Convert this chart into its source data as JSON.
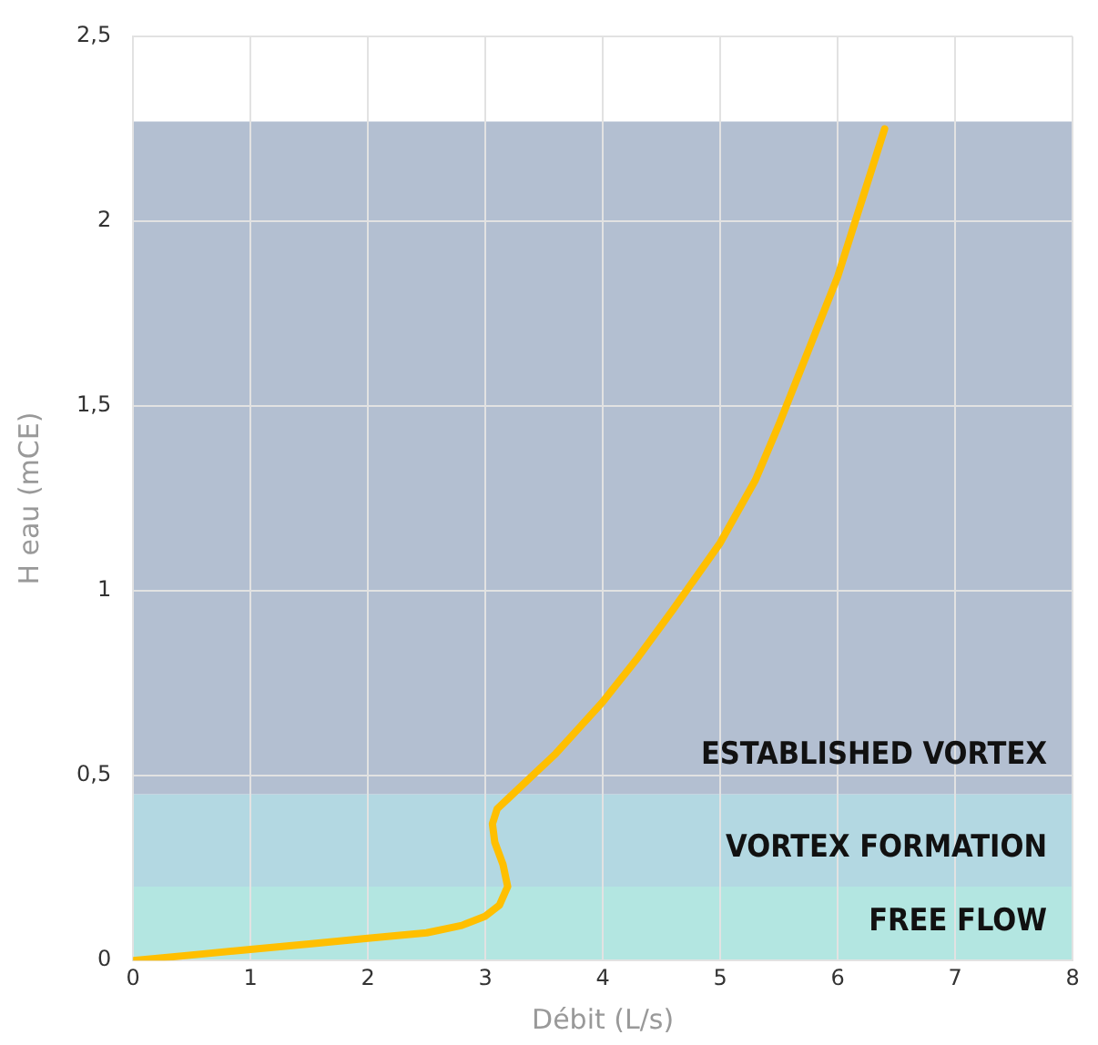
{
  "chart_data": {
    "type": "line",
    "xlabel": "Débit (L/s)",
    "ylabel": "H eau (mCE)",
    "xlim": [
      0,
      8
    ],
    "xticks": [
      0,
      1,
      2,
      3,
      4,
      5,
      6,
      7,
      8
    ],
    "ylim": [
      0,
      2.5
    ],
    "yticks": [
      0,
      {
        "value": 0.5,
        "label": "0,5"
      },
      1,
      {
        "value": 1.5,
        "label": "1,5"
      },
      2,
      {
        "value": 2.5,
        "label": "2,5"
      }
    ],
    "grid": true,
    "legend": false,
    "marker": "none",
    "line_style": "solid",
    "series": [
      {
        "color": "#ffbf00",
        "x": [
          0,
          0.5,
          1,
          1.5,
          2,
          2.5,
          2.8,
          3.0,
          3.12,
          3.19,
          3.15,
          3.08,
          3.06,
          3.1,
          3.2,
          3.4,
          3.6,
          3.8,
          4,
          4.3,
          4.6,
          5,
          5.3,
          5.5,
          5.75,
          6,
          6.2,
          6.4
        ],
        "values": [
          0,
          0.015,
          0.03,
          0.045,
          0.06,
          0.075,
          0.095,
          0.12,
          0.15,
          0.2,
          0.26,
          0.32,
          0.37,
          0.41,
          0.44,
          0.5,
          0.56,
          0.63,
          0.7,
          0.82,
          0.95,
          1.13,
          1.3,
          1.45,
          1.65,
          1.85,
          2.05,
          2.25
        ]
      }
    ],
    "bands": [
      {
        "axis": "y",
        "from": 0,
        "to": 0.2,
        "label": "FREE FLOW",
        "color": "#b3e6e1"
      },
      {
        "axis": "y",
        "from": 0.2,
        "to": 0.45,
        "label": "VORTEX FORMATION",
        "color": "#b3d8e2"
      },
      {
        "axis": "y",
        "from": 0.45,
        "to": 2.27,
        "label": "ESTABLISHED VORTEX",
        "color": "#b3bfd1"
      }
    ]
  }
}
